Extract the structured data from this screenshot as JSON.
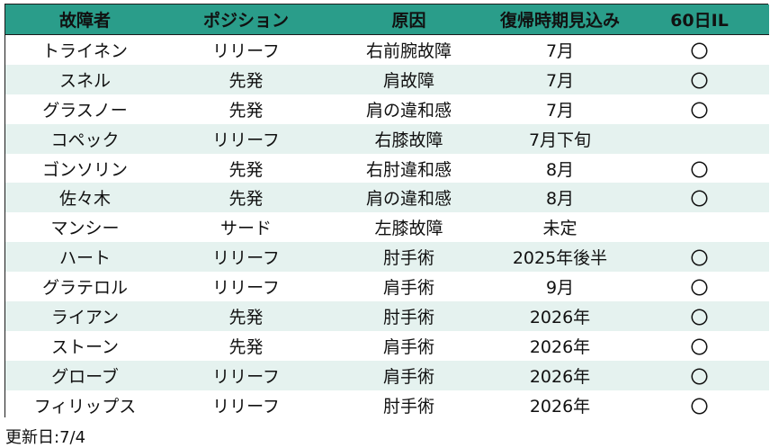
{
  "table": {
    "headers": [
      "故障者",
      "ポジション",
      "原因",
      "復帰時期見込み",
      "60日IL"
    ],
    "rows": [
      {
        "name": "トライネン",
        "position": "リリーフ",
        "cause": "右前腕故障",
        "return": "7月",
        "il": "〇"
      },
      {
        "name": "スネル",
        "position": "先発",
        "cause": "肩故障",
        "return": "7月",
        "il": "〇"
      },
      {
        "name": "グラスノー",
        "position": "先発",
        "cause": "肩の違和感",
        "return": "7月",
        "il": "〇"
      },
      {
        "name": "コペック",
        "position": "リリーフ",
        "cause": "右膝故障",
        "return": "7月下旬",
        "il": ""
      },
      {
        "name": "ゴンソリン",
        "position": "先発",
        "cause": "右肘違和感",
        "return": "8月",
        "il": "〇"
      },
      {
        "name": "佐々木",
        "position": "先発",
        "cause": "肩の違和感",
        "return": "8月",
        "il": "〇"
      },
      {
        "name": "マンシー",
        "position": "サード",
        "cause": "左膝故障",
        "return": "未定",
        "il": ""
      },
      {
        "name": "ハート",
        "position": "リリーフ",
        "cause": "肘手術",
        "return": "2025年後半",
        "il": "〇"
      },
      {
        "name": "グラテロル",
        "position": "リリーフ",
        "cause": "肩手術",
        "return": "9月",
        "il": "〇"
      },
      {
        "name": "ライアン",
        "position": "先発",
        "cause": "肘手術",
        "return": "2026年",
        "il": "〇"
      },
      {
        "name": "ストーン",
        "position": "先発",
        "cause": "肩手術",
        "return": "2026年",
        "il": "〇"
      },
      {
        "name": "グローブ",
        "position": "リリーフ",
        "cause": "肩手術",
        "return": "2026年",
        "il": "〇"
      },
      {
        "name": "フィリップス",
        "position": "リリーフ",
        "cause": "肘手術",
        "return": "2026年",
        "il": "〇"
      }
    ]
  },
  "footer": {
    "updated": "更新日:7/4"
  },
  "colors": {
    "header_bg": "#2a9d8a",
    "stripe_bg": "#e5f2ef"
  }
}
